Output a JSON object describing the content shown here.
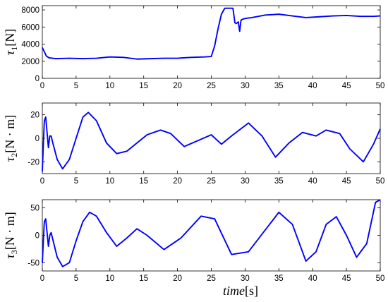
{
  "chart_data": [
    {
      "type": "line",
      "ylabel": "τ1[N]",
      "xlim": [
        0,
        50
      ],
      "ylim": [
        0,
        8500
      ],
      "xticks": [
        "0",
        "5",
        "10",
        "15",
        "20",
        "25",
        "30",
        "35",
        "40",
        "45",
        "50"
      ],
      "yticks": [
        "0",
        "2000",
        "4000",
        "6000",
        "8000"
      ],
      "line_color": "#0000ff",
      "series": [
        {
          "x": [
            0,
            0.3,
            0.6,
            1,
            2,
            4,
            6,
            8,
            10,
            12,
            14,
            16,
            18,
            20,
            22,
            24,
            25,
            25.5,
            26,
            26.5,
            27,
            28,
            28.2,
            28.5,
            28.7,
            29,
            29.2,
            29.4,
            29.6,
            30,
            31,
            33,
            35,
            37,
            39,
            41,
            43,
            45,
            47,
            49,
            50
          ],
          "y": [
            3600,
            3100,
            2600,
            2400,
            2300,
            2350,
            2300,
            2350,
            2500,
            2450,
            2250,
            2300,
            2350,
            2350,
            2450,
            2500,
            2550,
            3800,
            5800,
            7500,
            8200,
            8200,
            8200,
            6500,
            6400,
            6600,
            5500,
            6800,
            6900,
            7000,
            7100,
            7400,
            7500,
            7300,
            7100,
            7200,
            7300,
            7350,
            7250,
            7250,
            7300
          ]
        }
      ]
    },
    {
      "type": "line",
      "ylabel": "τ2[N · m]",
      "xlim": [
        0,
        50
      ],
      "ylim": [
        -30,
        30
      ],
      "xticks": [
        "0",
        "5",
        "10",
        "15",
        "20",
        "25",
        "30",
        "35",
        "40",
        "45",
        "50"
      ],
      "yticks": [
        "-20",
        "0",
        "20"
      ],
      "line_color": "#0000ff",
      "series": [
        {
          "x": [
            0,
            0.15,
            0.3,
            0.5,
            0.7,
            0.9,
            1.1,
            1.3,
            1.6,
            2.2,
            3,
            4,
            5,
            6,
            6.8,
            8,
            9.5,
            11,
            12.5,
            14,
            15.5,
            17.5,
            19,
            21,
            23,
            25,
            26.5,
            28,
            30.5,
            32.5,
            34.5,
            36.5,
            38.5,
            40.5,
            42,
            44,
            45.5,
            47.5,
            49,
            50
          ],
          "y": [
            -28,
            -5,
            15,
            18,
            5,
            -8,
            2,
            2,
            -5,
            -18,
            -26,
            -18,
            0,
            18,
            22,
            15,
            -4,
            -13,
            -11,
            -4,
            3,
            7,
            4,
            -7,
            -2,
            3,
            -5,
            2,
            13,
            2,
            -16,
            -4,
            5,
            2,
            7,
            4,
            -9,
            -20,
            -5,
            8
          ]
        }
      ]
    },
    {
      "type": "line",
      "ylabel": "τ3[N · m]",
      "xlabel": "time[s]",
      "xlim": [
        0,
        50
      ],
      "ylim": [
        -65,
        65
      ],
      "xticks": [
        "0",
        "5",
        "10",
        "15",
        "20",
        "25",
        "30",
        "35",
        "40",
        "45",
        "50"
      ],
      "yticks": [
        "-50",
        "0",
        "50"
      ],
      "line_color": "#0000ff",
      "series": [
        {
          "x": [
            0,
            0.15,
            0.3,
            0.5,
            0.7,
            0.9,
            1.1,
            1.3,
            1.6,
            2.2,
            3,
            4,
            5,
            6,
            7,
            8,
            9.5,
            11,
            12.5,
            14,
            15.5,
            18,
            20.5,
            23.5,
            25.5,
            28,
            30.5,
            33,
            35,
            37,
            39,
            40.5,
            42,
            43.5,
            45,
            46.5,
            48,
            49.3,
            50
          ],
          "y": [
            -50,
            -10,
            25,
            30,
            5,
            -20,
            0,
            5,
            -10,
            -40,
            -57,
            -50,
            -10,
            25,
            42,
            35,
            5,
            -20,
            -5,
            12,
            0,
            -26,
            -5,
            35,
            30,
            -35,
            -30,
            10,
            42,
            20,
            -47,
            -30,
            20,
            34,
            0,
            -40,
            -15,
            60,
            65
          ]
        }
      ]
    }
  ]
}
